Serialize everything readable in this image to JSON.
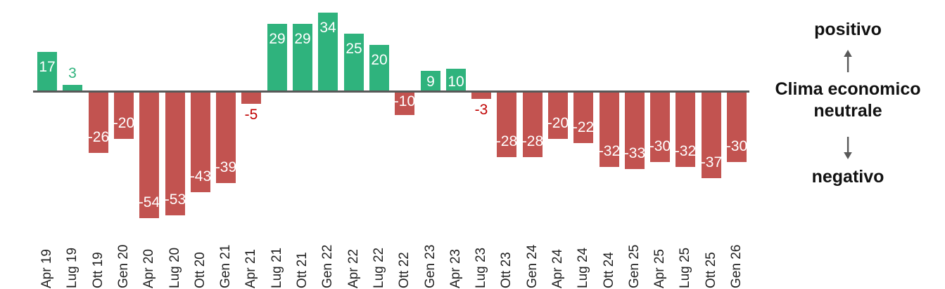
{
  "chart_data": {
    "type": "bar",
    "categories": [
      "Apr 19",
      "Lug 19",
      "Ott 19",
      "Gen 20",
      "Apr 20",
      "Lug 20",
      "Ott 20",
      "Gen 21",
      "Apr 21",
      "Lug 21",
      "Ott 21",
      "Gen 22",
      "Apr 22",
      "Lug 22",
      "Ott 22",
      "Gen 23",
      "Apr 23",
      "Lug 23",
      "Ott 23",
      "Gen 24",
      "Apr 24",
      "Lug 24",
      "Ott 24",
      "Gen 25",
      "Apr 25",
      "Lug 25",
      "Ott 25",
      "Gen 26"
    ],
    "values": [
      17,
      3,
      -26,
      -20,
      -54,
      -53,
      -43,
      -39,
      -5,
      29,
      29,
      34,
      25,
      20,
      -10,
      9,
      10,
      -3,
      -28,
      -28,
      -20,
      -22,
      -32,
      -33,
      -30,
      -32,
      -37,
      -30
    ],
    "title": "",
    "xlabel": "",
    "ylabel": "",
    "ylim": [
      -60,
      40
    ],
    "grid": false,
    "legend": "none",
    "positive_color": "#2fb37d",
    "negative_color": "#c25350",
    "label_inside_color": "#ffffff",
    "label_outside_positive_color": "#2fb37d",
    "label_outside_negative_color": "#c00000",
    "axis_line_color": "#595959"
  },
  "annotation": {
    "positive_label": "positivo",
    "center_label_line1": "Clima economico",
    "center_label_line2": "neutrale",
    "negative_label": "negativo",
    "arrow_up_icon": "arrow-up",
    "arrow_down_icon": "arrow-down",
    "arrow_color": "#595959",
    "text_color": "#111111"
  }
}
